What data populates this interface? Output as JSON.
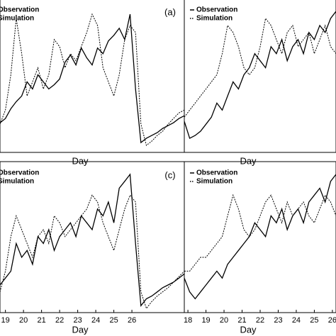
{
  "chart_data": [
    {
      "type": "line",
      "panel_label": "(a)",
      "x_label": "Day",
      "legend": "upper-left",
      "xlim": [
        18.7,
        28.9
      ],
      "ylim": [
        0,
        100
      ],
      "x": [
        18.7,
        19.0,
        19.3,
        19.6,
        19.9,
        20.2,
        20.5,
        20.8,
        21.1,
        21.4,
        21.7,
        22.0,
        22.3,
        22.6,
        22.9,
        23.2,
        23.5,
        23.8,
        24.1,
        24.4,
        24.7,
        25.0,
        25.3,
        25.6,
        25.9,
        26.2,
        26.5,
        26.8,
        27.1,
        27.4,
        27.7,
        28.0,
        28.3,
        28.6,
        28.9
      ],
      "series": [
        {
          "name": "Observation",
          "color": "#000000",
          "style": "solid",
          "values": [
            21,
            24,
            31,
            36,
            40,
            50,
            45,
            55,
            50,
            45,
            48,
            52,
            64,
            69,
            62,
            74,
            67,
            62,
            74,
            70,
            79,
            83,
            88,
            80,
            98,
            45,
            7,
            10,
            12,
            14,
            17,
            19,
            21,
            24,
            26
          ]
        },
        {
          "name": "Simulation",
          "color": "#000000",
          "style": "dotted",
          "values": [
            20,
            30,
            55,
            95,
            70,
            40,
            50,
            60,
            45,
            55,
            80,
            75,
            60,
            70,
            65,
            75,
            85,
            98,
            90,
            60,
            50,
            40,
            55,
            80,
            90,
            85,
            20,
            5,
            8,
            12,
            15,
            20,
            24,
            28,
            30
          ]
        }
      ]
    },
    {
      "type": "line",
      "x_label": "Day",
      "legend": "upper-left",
      "xlim": [
        17.8,
        26.2
      ],
      "ylim": [
        0,
        100
      ],
      "x": [
        17.8,
        18.1,
        18.4,
        18.7,
        19.0,
        19.3,
        19.6,
        19.9,
        20.2,
        20.5,
        20.8,
        21.1,
        21.4,
        21.7,
        22.0,
        22.3,
        22.6,
        22.9,
        23.2,
        23.5,
        23.8,
        24.1,
        24.4,
        24.7,
        25.0,
        25.3,
        25.6,
        25.9,
        26.2
      ],
      "series": [
        {
          "name": "Observation",
          "color": "#000000",
          "style": "solid",
          "values": [
            22,
            10,
            12,
            15,
            20,
            25,
            35,
            30,
            40,
            50,
            45,
            55,
            60,
            70,
            65,
            60,
            75,
            70,
            80,
            65,
            75,
            80,
            70,
            85,
            80,
            90,
            85,
            95,
            100
          ]
        },
        {
          "name": "Simulation",
          "color": "#000000",
          "style": "dotted",
          "values": [
            25,
            30,
            35,
            40,
            45,
            50,
            55,
            70,
            90,
            85,
            75,
            60,
            55,
            60,
            75,
            95,
            90,
            80,
            70,
            85,
            90,
            75,
            80,
            85,
            70,
            80,
            90,
            75,
            70
          ]
        }
      ]
    },
    {
      "type": "line",
      "panel_label": "(c)",
      "x_label": "Day",
      "legend": "upper-left",
      "xlim": [
        18.7,
        28.9
      ],
      "ylim": [
        0,
        100
      ],
      "xticks": [
        19,
        20,
        21,
        22,
        23,
        24,
        25,
        26
      ],
      "x": [
        18.7,
        19.0,
        19.3,
        19.6,
        19.9,
        20.2,
        20.5,
        20.8,
        21.1,
        21.4,
        21.7,
        22.0,
        22.3,
        22.6,
        22.9,
        23.2,
        23.5,
        23.8,
        24.1,
        24.4,
        24.7,
        25.0,
        25.3,
        25.6,
        25.9,
        26.2,
        26.5,
        26.8,
        27.1,
        27.4,
        27.7,
        28.0,
        28.3,
        28.6,
        28.9
      ],
      "series": [
        {
          "name": "Observation",
          "color": "#000000",
          "style": "solid",
          "values": [
            20,
            25,
            30,
            50,
            40,
            45,
            35,
            55,
            50,
            60,
            45,
            55,
            60,
            65,
            55,
            70,
            65,
            60,
            75,
            70,
            80,
            65,
            90,
            95,
            100,
            50,
            5,
            10,
            12,
            15,
            18,
            20,
            22,
            25,
            28
          ]
        },
        {
          "name": "Simulation",
          "color": "#000000",
          "style": "dotted",
          "values": [
            15,
            30,
            55,
            70,
            60,
            50,
            40,
            55,
            60,
            50,
            70,
            65,
            55,
            60,
            65,
            70,
            75,
            85,
            80,
            65,
            55,
            45,
            60,
            75,
            85,
            80,
            15,
            3,
            8,
            12,
            15,
            18,
            22,
            26,
            30
          ]
        }
      ]
    },
    {
      "type": "line",
      "x_label": "Day",
      "legend": "upper-left",
      "xlim": [
        17.8,
        26.2
      ],
      "ylim": [
        0,
        100
      ],
      "xticks": [
        18,
        19,
        20,
        21,
        22,
        23,
        24,
        25,
        26
      ],
      "x": [
        17.8,
        18.1,
        18.4,
        18.7,
        19.0,
        19.3,
        19.6,
        19.9,
        20.2,
        20.5,
        20.8,
        21.1,
        21.4,
        21.7,
        22.0,
        22.3,
        22.6,
        22.9,
        23.2,
        23.5,
        23.8,
        24.1,
        24.4,
        24.7,
        25.0,
        25.3,
        25.6,
        25.9,
        26.2
      ],
      "series": [
        {
          "name": "Observation",
          "color": "#000000",
          "style": "solid",
          "values": [
            25,
            15,
            10,
            15,
            20,
            25,
            30,
            25,
            35,
            40,
            45,
            50,
            55,
            65,
            60,
            55,
            70,
            65,
            75,
            60,
            70,
            75,
            65,
            80,
            85,
            90,
            80,
            95,
            100
          ]
        },
        {
          "name": "Simulation",
          "color": "#000000",
          "style": "dotted",
          "values": [
            30,
            30,
            35,
            40,
            40,
            45,
            50,
            55,
            70,
            85,
            75,
            60,
            55,
            60,
            70,
            80,
            85,
            75,
            65,
            80,
            70,
            75,
            80,
            70,
            65,
            75,
            85,
            80,
            70
          ]
        }
      ]
    }
  ]
}
